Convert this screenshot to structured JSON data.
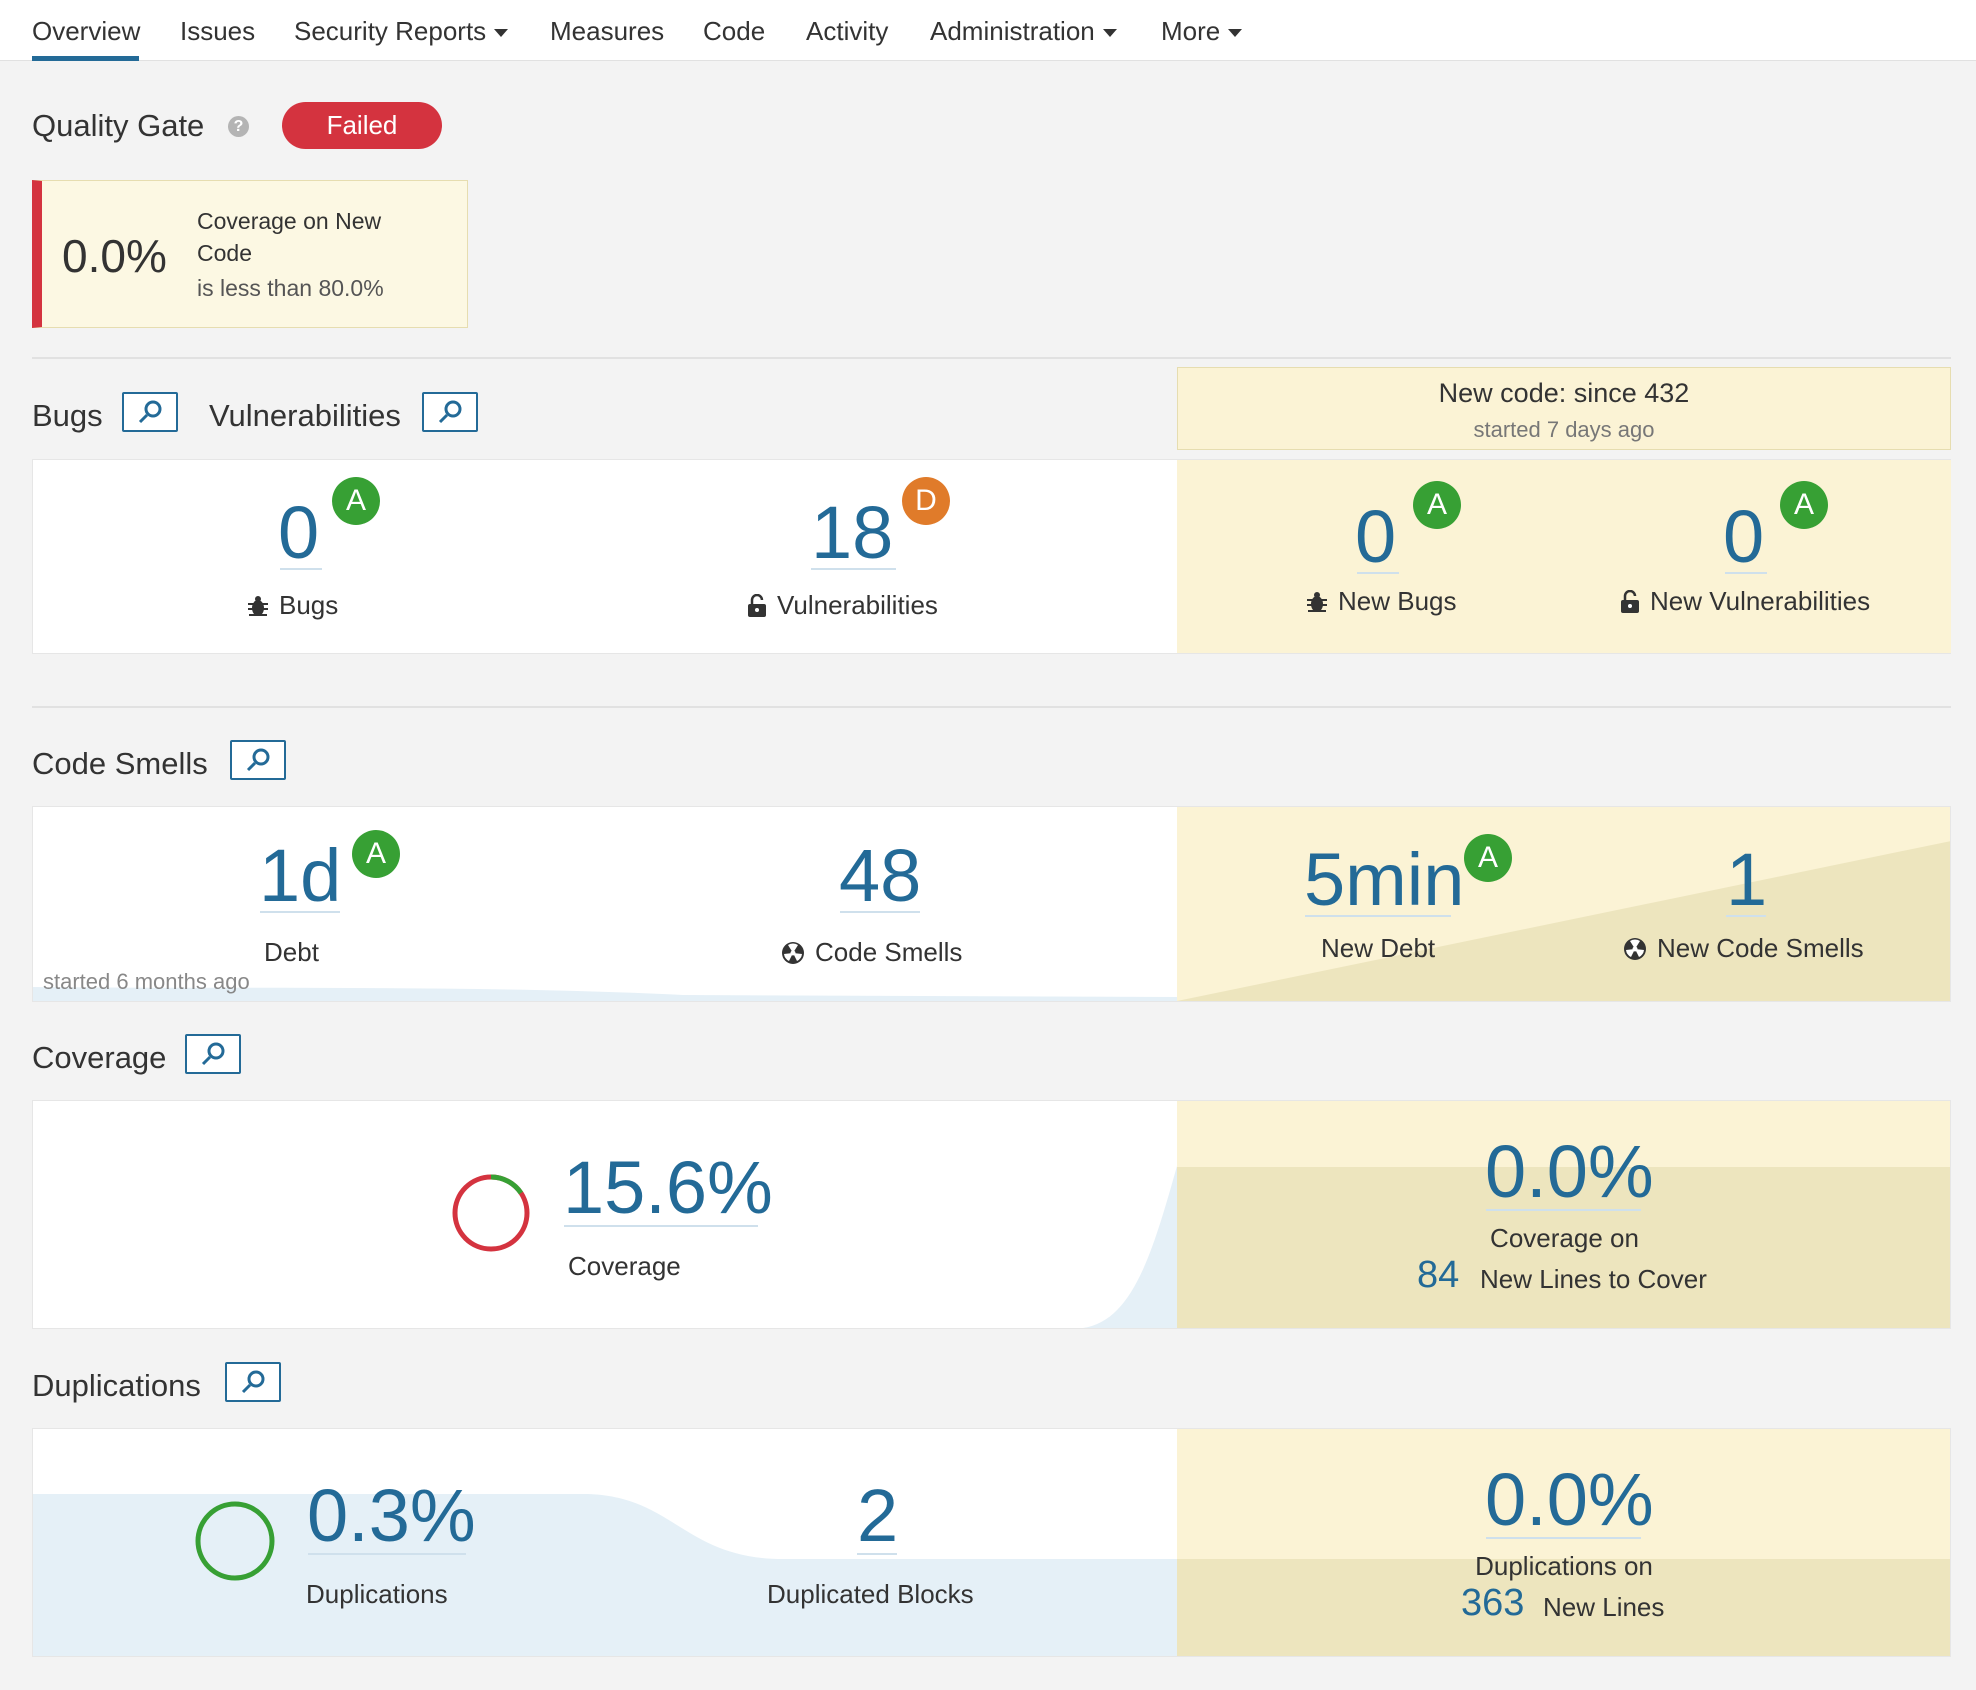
{
  "nav": {
    "overview": "Overview",
    "issues": "Issues",
    "security_reports": "Security Reports",
    "measures": "Measures",
    "code": "Code",
    "activity": "Activity",
    "administration": "Administration",
    "more": "More"
  },
  "quality_gate": {
    "title": "Quality Gate",
    "status": "Failed",
    "condition": {
      "value": "0.0%",
      "metric": "Coverage on New Code",
      "threshold": "is less than 80.0%"
    }
  },
  "new_code": {
    "title": "New code: since 432",
    "subtitle": "started 7 days ago"
  },
  "bugs_vulns": {
    "bugs_title": "Bugs",
    "vulns_title": "Vulnerabilities",
    "bugs_value": "0",
    "bugs_rating": "A",
    "bugs_label": "Bugs",
    "vulns_value": "18",
    "vulns_rating": "D",
    "vulns_label": "Vulnerabilities",
    "new_bugs_value": "0",
    "new_bugs_rating": "A",
    "new_bugs_label": "New Bugs",
    "new_vulns_value": "0",
    "new_vulns_rating": "A",
    "new_vulns_label": "New Vulnerabilities"
  },
  "code_smells": {
    "title": "Code Smells",
    "debt_value": "1d",
    "debt_rating": "A",
    "debt_label": "Debt",
    "started": "started 6 months ago",
    "smells_value": "48",
    "smells_label": "Code Smells",
    "new_debt_value": "5min",
    "new_debt_rating": "A",
    "new_debt_label": "New Debt",
    "new_smells_value": "1",
    "new_smells_label": "New Code Smells"
  },
  "coverage": {
    "title": "Coverage",
    "value": "15.6%",
    "percent": 15.6,
    "label": "Coverage",
    "new_value": "0.0%",
    "new_label": "Coverage on",
    "new_lines_value": "84",
    "new_lines_label": "New Lines to Cover"
  },
  "duplications": {
    "title": "Duplications",
    "value": "0.3%",
    "label": "Duplications",
    "blocks_value": "2",
    "blocks_label": "Duplicated Blocks",
    "new_value": "0.0%",
    "new_label": "Duplications on",
    "new_lines_value": "363",
    "new_lines_label": "New Lines"
  },
  "colors": {
    "accent": "#236a97",
    "failed": "#d4333f",
    "rating_a": "#37a034",
    "rating_d": "#e07b2a",
    "leak_bg": "#fbf3d5"
  }
}
